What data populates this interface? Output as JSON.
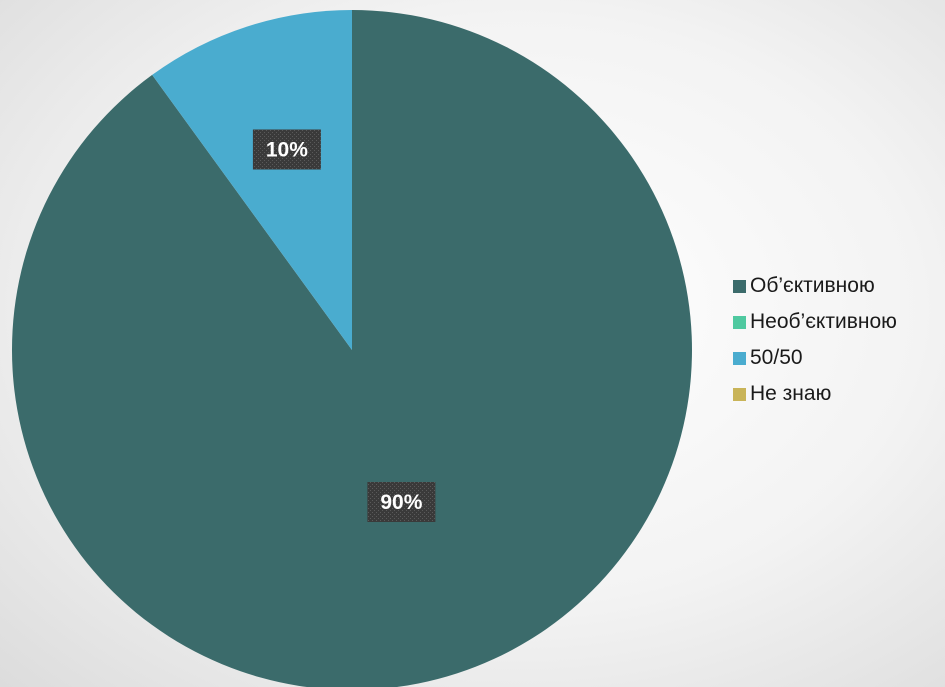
{
  "chart_data": {
    "type": "pie",
    "categories": [
      "Об’єктивною",
      "Необ’єктивною",
      "50/50",
      "Не знаю"
    ],
    "values": [
      90,
      0,
      10,
      0
    ],
    "data_labels": [
      "90%",
      "",
      "10%",
      ""
    ],
    "colors": [
      "#3b6b6b",
      "#4fc9a0",
      "#4aaccf",
      "#c9b458"
    ],
    "start_angle_deg": 0,
    "direction": "clockwise",
    "legend_position": "right"
  },
  "legend": {
    "items": [
      {
        "label": "Об’єктивною",
        "color": "#3b6b6b"
      },
      {
        "label": "Необ’єктивною",
        "color": "#4fc9a0"
      },
      {
        "label": "50/50",
        "color": "#4aaccf"
      },
      {
        "label": "Не знаю",
        "color": "#c9b458"
      }
    ]
  }
}
